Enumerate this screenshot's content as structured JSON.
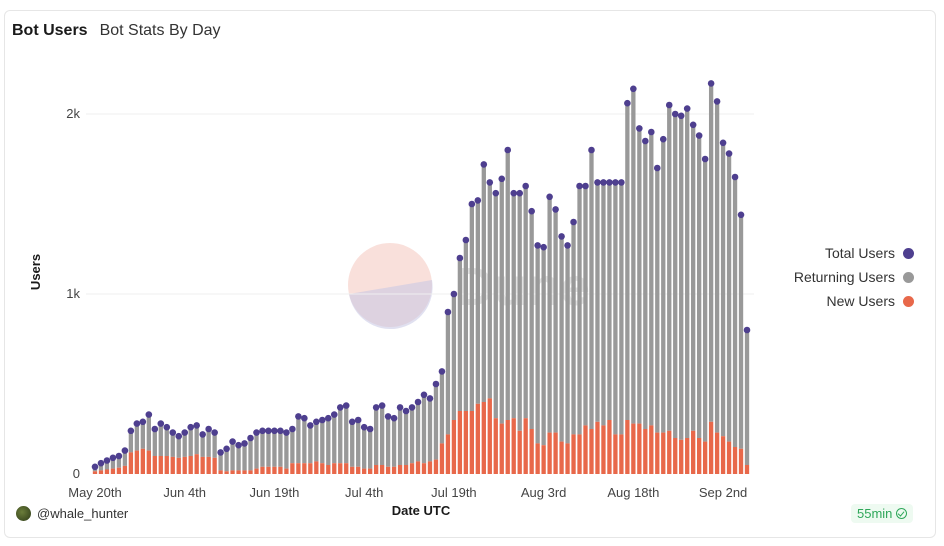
{
  "header": {
    "title": "Bot Users",
    "subtitle": "Bot Stats By Day"
  },
  "footer": {
    "username": "@whale_hunter",
    "runtime": "55min"
  },
  "watermark": {
    "text": "Dune"
  },
  "colors": {
    "total": "#4e3f8f",
    "returning": "#999999",
    "new": "#e8684a"
  },
  "chart_data": {
    "type": "bar",
    "title": "Bot Stats By Day",
    "xlabel": "Date UTC",
    "ylabel": "Users",
    "ylim": [
      0,
      2300
    ],
    "yticks": [
      {
        "value": 0,
        "label": "0"
      },
      {
        "value": 1000,
        "label": "1k"
      },
      {
        "value": 2000,
        "label": "2k"
      }
    ],
    "xticks": [
      {
        "index": 0,
        "label": "May 20th"
      },
      {
        "index": 15,
        "label": "Jun 4th"
      },
      {
        "index": 30,
        "label": "Jun 19th"
      },
      {
        "index": 45,
        "label": "Jul 4th"
      },
      {
        "index": 60,
        "label": "Jul 19th"
      },
      {
        "index": 75,
        "label": "Aug 3rd"
      },
      {
        "index": 90,
        "label": "Aug 18th"
      },
      {
        "index": 105,
        "label": "Sep 2nd"
      }
    ],
    "start_date": "May 20th",
    "legend": [
      "Total Users",
      "Returning Users",
      "New Users"
    ],
    "series": [
      {
        "name": "Total Users",
        "values": [
          40,
          60,
          75,
          90,
          100,
          130,
          240,
          280,
          290,
          330,
          250,
          280,
          260,
          230,
          210,
          230,
          260,
          270,
          220,
          250,
          230,
          120,
          140,
          180,
          160,
          170,
          200,
          230,
          240,
          240,
          240,
          240,
          230,
          250,
          320,
          310,
          270,
          290,
          300,
          310,
          330,
          370,
          380,
          290,
          300,
          260,
          250,
          370,
          380,
          320,
          310,
          370,
          350,
          370,
          400,
          440,
          420,
          500,
          570,
          900,
          1000,
          1200,
          1300,
          1500,
          1520,
          1720,
          1620,
          1560,
          1640,
          1800,
          1560,
          1560,
          1600,
          1460,
          1270,
          1260,
          1540,
          1470,
          1320,
          1270,
          1400,
          1600,
          1600,
          1800,
          1620,
          1620,
          1620,
          1620,
          1620,
          2060,
          2140,
          1920,
          1850,
          1900,
          1700,
          1860,
          2050,
          2000,
          1990,
          2030,
          1940,
          1880,
          1750,
          2170,
          2070,
          1840,
          1780,
          1650,
          1440,
          800
        ]
      },
      {
        "name": "Returning Users",
        "values": [
          25,
          40,
          50,
          60,
          65,
          85,
          120,
          150,
          150,
          200,
          150,
          180,
          160,
          135,
          120,
          135,
          160,
          160,
          125,
          155,
          140,
          100,
          125,
          160,
          140,
          150,
          180,
          200,
          200,
          200,
          200,
          200,
          200,
          190,
          260,
          250,
          210,
          220,
          240,
          260,
          270,
          310,
          320,
          250,
          260,
          230,
          220,
          320,
          330,
          280,
          270,
          320,
          300,
          310,
          330,
          380,
          350,
          420,
          400,
          680,
          700,
          850,
          950,
          1150,
          1130,
          1320,
          1200,
          1250,
          1360,
          1500,
          1250,
          1320,
          1290,
          1210,
          1100,
          1100,
          1310,
          1240,
          1140,
          1100,
          1180,
          1380,
          1330,
          1550,
          1330,
          1350,
          1320,
          1400,
          1400,
          1760,
          1860,
          1640,
          1600,
          1630,
          1470,
          1630,
          1810,
          1800,
          1800,
          1830,
          1700,
          1680,
          1570,
          1880,
          1840,
          1630,
          1600,
          1500,
          1300,
          750
        ]
      },
      {
        "name": "New Users",
        "values": [
          15,
          20,
          25,
          30,
          35,
          45,
          120,
          130,
          140,
          130,
          100,
          100,
          100,
          95,
          90,
          95,
          100,
          110,
          95,
          95,
          90,
          20,
          15,
          20,
          20,
          20,
          20,
          30,
          40,
          40,
          40,
          40,
          30,
          60,
          60,
          60,
          60,
          70,
          60,
          50,
          60,
          60,
          60,
          40,
          40,
          30,
          30,
          50,
          50,
          40,
          40,
          50,
          50,
          60,
          70,
          60,
          70,
          80,
          170,
          220,
          300,
          350,
          350,
          350,
          390,
          400,
          420,
          310,
          280,
          300,
          310,
          240,
          310,
          250,
          170,
          160,
          230,
          230,
          180,
          170,
          220,
          220,
          270,
          250,
          290,
          270,
          300,
          220,
          220,
          300,
          280,
          280,
          250,
          270,
          230,
          230,
          240,
          200,
          190,
          200,
          240,
          200,
          180,
          290,
          230,
          210,
          180,
          150,
          140,
          50
        ]
      }
    ]
  }
}
